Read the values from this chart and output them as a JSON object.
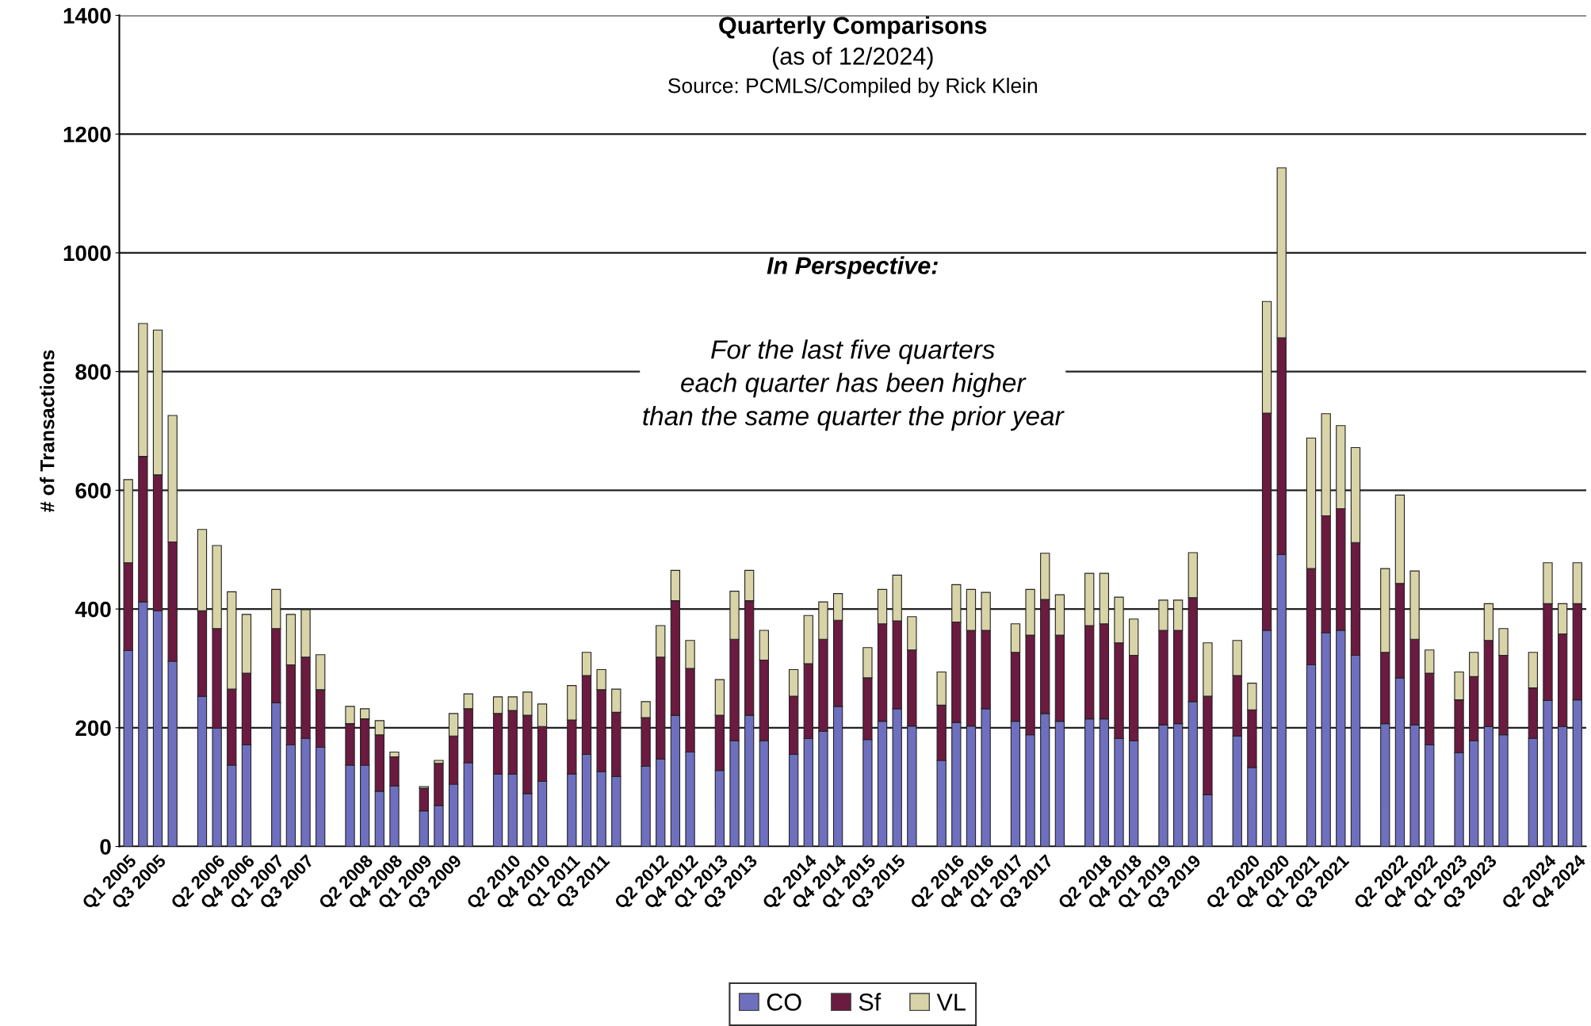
{
  "chart_data": {
    "type": "bar",
    "stacked": true,
    "title": "Quarterly Comparisons",
    "subtitle": "(as of 12/2024)",
    "ylabel": "# of Transactions",
    "annotations": [
      "Source: PCMLS/Compiled by Rick Klein",
      "In Perspective:",
      "For the last five quarters\neach quarter has been higher\nthan the same quarter the prior year"
    ],
    "categories": [
      "Q1 2005",
      null,
      "Q3 2005",
      null,
      null,
      null,
      "Q2 2006",
      null,
      "Q4 2006",
      null,
      "Q1 2007",
      null,
      "Q3 2007",
      null,
      null,
      null,
      "Q2 2008",
      null,
      "Q4 2008",
      null,
      "Q1 2009",
      null,
      "Q3 2009",
      null,
      null,
      null,
      "Q2 2010",
      null,
      "Q4 2010",
      null,
      "Q1 2011",
      null,
      "Q3 2011",
      null,
      null,
      null,
      "Q2 2012",
      null,
      "Q4 2012",
      null,
      "Q1 2013",
      null,
      "Q3 2013",
      null,
      null,
      null,
      "Q2 2014",
      null,
      "Q4 2014",
      null,
      "Q1 2015",
      null,
      "Q3 2015",
      null,
      null,
      null,
      "Q2 2016",
      null,
      "Q4 2016",
      null,
      "Q1 2017",
      null,
      "Q3 2017",
      null,
      null,
      null,
      "Q2 2018",
      null,
      "Q4 2018",
      null,
      "Q1 2019",
      null,
      "Q3 2019",
      null,
      null,
      null,
      "Q2 2020",
      null,
      "Q4 2020",
      null,
      "Q1 2021",
      null,
      "Q3 2021",
      null,
      null,
      null,
      "Q2 2022",
      null,
      "Q4 2022",
      null,
      "Q1 2023",
      null,
      "Q3 2023",
      null,
      null,
      null,
      "Q2 2024",
      null,
      "Q4 2024"
    ],
    "series": [
      {
        "name": "CO",
        "color": "#6f6fc0",
        "values": [
          330,
          412,
          397,
          312,
          null,
          253,
          199,
          137,
          171,
          null,
          242,
          171,
          182,
          167,
          null,
          137,
          137,
          93,
          102,
          null,
          60,
          69,
          105,
          141,
          null,
          122,
          122,
          89,
          110,
          null,
          122,
          155,
          126,
          118,
          null,
          135,
          147,
          221,
          159,
          null,
          128,
          178,
          221,
          178,
          null,
          155,
          182,
          194,
          236,
          null,
          180,
          211,
          232,
          203,
          null,
          145,
          209,
          203,
          232,
          null,
          211,
          188,
          224,
          211,
          null,
          215,
          215,
          182,
          178,
          null,
          205,
          207,
          244,
          87,
          null,
          186,
          133,
          364,
          492,
          null,
          306,
          360,
          364,
          322,
          null,
          207,
          284,
          205,
          171,
          null,
          158,
          178,
          202,
          188,
          null,
          182,
          246,
          202,
          247
        ]
      },
      {
        "name": "Sf",
        "color": "#6b1a40",
        "values": [
          148,
          245,
          229,
          201,
          null,
          144,
          168,
          128,
          121,
          null,
          125,
          135,
          137,
          97,
          null,
          70,
          78,
          95,
          49,
          null,
          38,
          71,
          81,
          91,
          null,
          102,
          107,
          132,
          92,
          null,
          91,
          133,
          138,
          108,
          null,
          82,
          172,
          193,
          141,
          null,
          93,
          171,
          193,
          136,
          null,
          98,
          126,
          155,
          145,
          null,
          104,
          164,
          148,
          128,
          null,
          93,
          169,
          161,
          132,
          null,
          116,
          168,
          192,
          145,
          null,
          157,
          160,
          161,
          144,
          null,
          159,
          157,
          175,
          166,
          null,
          102,
          97,
          366,
          365,
          null,
          162,
          197,
          205,
          190,
          null,
          120,
          159,
          144,
          121,
          null,
          89,
          108,
          145,
          134,
          null,
          85,
          163,
          156,
          162
        ]
      },
      {
        "name": "VL",
        "color": "#d8d4a8",
        "values": [
          140,
          224,
          244,
          213,
          null,
          137,
          140,
          164,
          99,
          null,
          66,
          85,
          80,
          59,
          null,
          29,
          17,
          24,
          8,
          null,
          3,
          5,
          38,
          25,
          null,
          28,
          23,
          39,
          38,
          null,
          58,
          39,
          34,
          39,
          null,
          27,
          53,
          51,
          47,
          null,
          60,
          81,
          51,
          50,
          null,
          45,
          81,
          63,
          45,
          null,
          51,
          58,
          77,
          56,
          null,
          56,
          63,
          69,
          64,
          null,
          48,
          77,
          78,
          68,
          null,
          88,
          85,
          77,
          61,
          null,
          51,
          51,
          76,
          90,
          null,
          59,
          45,
          188,
          286,
          null,
          220,
          172,
          140,
          160,
          null,
          141,
          149,
          115,
          39,
          null,
          47,
          41,
          62,
          45,
          null,
          60,
          69,
          51,
          69
        ]
      }
    ],
    "ylim": [
      0,
      1400
    ],
    "yticks": [
      0,
      200,
      400,
      600,
      800,
      1000,
      1200,
      1400
    ],
    "grid": "y",
    "legend": "bottom"
  }
}
